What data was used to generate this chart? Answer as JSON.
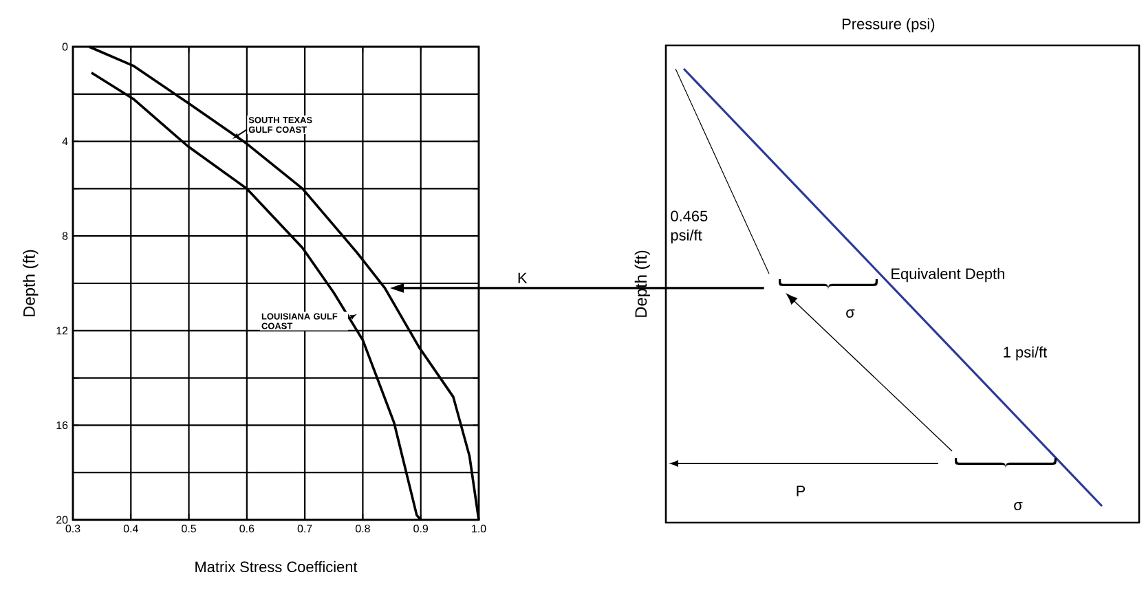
{
  "chart_data": [
    {
      "type": "line",
      "xlabel": "Matrix Stress Coefficient",
      "ylabel": "Depth (ft)",
      "xlim": [
        0.3,
        1.0
      ],
      "xticks": [
        0.3,
        0.4,
        0.5,
        0.6,
        0.7,
        0.8,
        0.9,
        {
          "value": 1.0,
          "label": "1.0"
        }
      ],
      "ref_lines": [
        {
          "axis": "y",
          "value": 10.2,
          "label": "K"
        }
      ],
      "ylim": [
        20,
        0
      ],
      "yticks": [
        0,
        {
          "value": 2,
          "label": null
        },
        4,
        {
          "value": 6,
          "label": null
        },
        8,
        {
          "value": 10,
          "label": null
        },
        12,
        {
          "value": 14,
          "label": null
        },
        16,
        {
          "value": 18,
          "label": null
        },
        20
      ],
      "grid": true,
      "series": [
        {
          "name": "SOUTH TEXAS GULF COAST",
          "color": "#000000",
          "x": [
            0.328,
            0.404,
            0.5,
            0.6,
            0.696,
            0.79,
            0.838,
            0.897,
            0.956,
            0.984,
            1.0
          ],
          "values": [
            0,
            0.8,
            2.4,
            4.1,
            6.0,
            8.7,
            10.2,
            12.7,
            14.8,
            17.3,
            20
          ]
        },
        {
          "name": "LOUISIANA GULF COAST",
          "color": "#000000",
          "x": [
            0.332,
            0.404,
            0.498,
            0.6,
            0.696,
            0.75,
            0.8,
            0.854,
            0.893,
            0.9
          ],
          "values": [
            1.1,
            2.2,
            4.2,
            6.0,
            8.5,
            10.4,
            12.4,
            15.9,
            19.8,
            20
          ]
        }
      ]
    },
    {
      "type": "other",
      "xlabel": "Pressure (psi)",
      "ylabel": "Depth (ft)",
      "annotations": [
        "0.465 psi/ft",
        "Equivalent Depth",
        "σ",
        "1 psi/ft",
        "σ",
        "P"
      ]
    }
  ]
}
